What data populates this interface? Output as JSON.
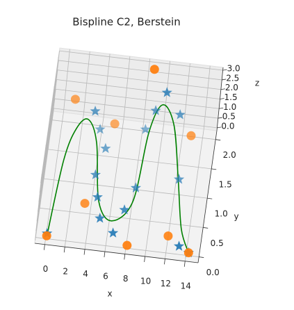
{
  "chart_data": {
    "type": "spline3d",
    "title": "Bispline C2, Berstein",
    "xlabel": "x",
    "ylabel": "y",
    "zlabel": "z",
    "xlim": [
      -1,
      15.3
    ],
    "ylim": [
      -0.1,
      2.15
    ],
    "zlim": [
      -0.15,
      3.15
    ],
    "xticks": [
      0,
      2,
      4,
      6,
      8,
      10,
      12,
      14
    ],
    "yticks": [
      {
        "value": 0,
        "label": "0.0"
      },
      {
        "value": 0.5,
        "label": "0.5"
      },
      {
        "value": 1,
        "label": "1.0"
      },
      {
        "value": 1.5,
        "label": "1.5"
      },
      {
        "value": 2,
        "label": "2.0"
      }
    ],
    "zticks": [
      {
        "value": 0,
        "label": "0.0"
      },
      {
        "value": 0.5,
        "label": "0.5"
      },
      {
        "value": 1,
        "label": "1.0"
      },
      {
        "value": 1.5,
        "label": "1.5"
      },
      {
        "value": 2,
        "label": "2.0"
      },
      {
        "value": 2.5,
        "label": "2.5"
      },
      {
        "value": 3,
        "label": "3.0"
      }
    ],
    "grid": true,
    "series": [
      {
        "kind": "line",
        "color": "#008000",
        "x": [
          0.12,
          0.7,
          1.51,
          2.59,
          3.68,
          4.71,
          6.25,
          8.06,
          8.67,
          9.71,
          11.06,
          12.22,
          13.2,
          14.24
        ],
        "y": [
          0.05,
          1.31,
          1.86,
          1.87,
          1.66,
          0.68,
          0.38,
          0.75,
          1.94,
          2.1,
          1.95,
          1.19,
          0.38,
          0
        ],
        "z": [
          0,
          0,
          0,
          0.5,
          0,
          0,
          0,
          0,
          0,
          1,
          0.5,
          0,
          0,
          0
        ]
      },
      {
        "kind": "scatter",
        "marker": "star",
        "color": "#1f77b4",
        "x": [
          0.08,
          3.19,
          3.84,
          4.64,
          4.02,
          4.53,
          5.06,
          6.55,
          7.35,
          8.16,
          8.29,
          9.12,
          10.05,
          11.57,
          12.28,
          13.21,
          14.24
        ],
        "y": [
          0.04,
          1.86,
          1.89,
          1.58,
          1.12,
          0.75,
          0.4,
          0.18,
          0.59,
          0.98,
          1.98,
          1.99,
          1.99,
          1.97,
          1.21,
          0.09,
          0
        ],
        "z": [
          0,
          1,
          0,
          0,
          0,
          0,
          0,
          0,
          0,
          0,
          0,
          1,
          2,
          1,
          0,
          0,
          0
        ]
      },
      {
        "kind": "scatter",
        "marker": "circle",
        "color": "#ff7f0e",
        "x": [
          0.08,
          1.07,
          3.37,
          5.24,
          8.1,
          8.58,
          12.0,
          12.94,
          14.24
        ],
        "y": [
          0,
          2.02,
          0.62,
          1.85,
          0,
          2.03,
          0.24,
          1.64,
          0
        ],
        "z": [
          0,
          1,
          0,
          0.5,
          0,
          3,
          0,
          1,
          0
        ]
      }
    ]
  }
}
